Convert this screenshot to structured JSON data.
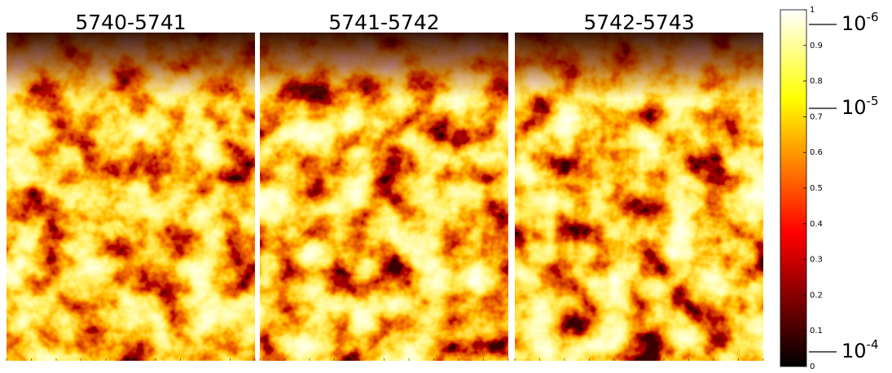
{
  "panels": [
    {
      "title": "5740-5741"
    },
    {
      "title": "5741-5742"
    },
    {
      "title": "5742-5743"
    }
  ],
  "colorbar": {
    "ticks": [
      0,
      0.1,
      0.2,
      0.3,
      0.4,
      0.5,
      0.6,
      0.7,
      0.8,
      0.9,
      1
    ],
    "side_labels": [
      {
        "base": "10",
        "exponent": "-6"
      },
      {
        "base": "10",
        "exponent": "-5"
      },
      {
        "base": "10",
        "exponent": "-4"
      }
    ]
  }
}
